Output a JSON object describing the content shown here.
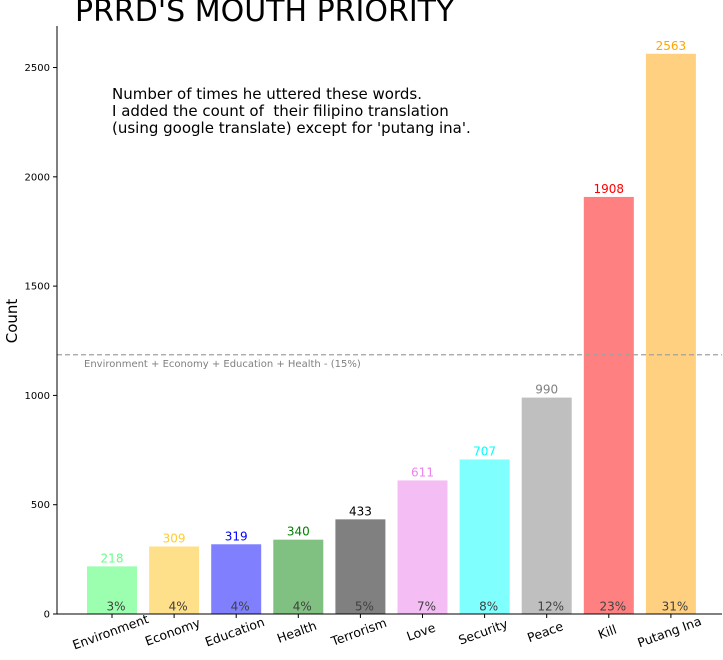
{
  "chart_data": {
    "type": "bar",
    "title": "PRRD'S MOUTH PRIORITY",
    "ylabel": "Count",
    "xlabel": "",
    "annotation_lines": [
      "Number of times he uttered these words.",
      "I added the count of  their filipino translation",
      "(using google translate) except for 'putang ina'."
    ],
    "categories": [
      "Environment",
      "Economy",
      "Education",
      "Health",
      "Terrorism",
      "Love",
      "Security",
      "Peace",
      "Kill",
      "Putang Ina"
    ],
    "values": [
      218,
      309,
      319,
      340,
      433,
      611,
      707,
      990,
      1908,
      2563
    ],
    "percent_labels": [
      "3%",
      "4%",
      "4%",
      "4%",
      "5%",
      "7%",
      "8%",
      "12%",
      "23%",
      "31%"
    ],
    "bar_colors": [
      "#9cffb0",
      "#ffe08a",
      "#8080ff",
      "#80c080",
      "#808080",
      "#f4bef4",
      "#80ffff",
      "#bfbfbf",
      "#ff8080",
      "#ffd080"
    ],
    "value_label_colors": [
      "#66ff88",
      "#ffcc33",
      "#0000ff",
      "#008000",
      "#000000",
      "#ee82ee",
      "#00ffff",
      "#808080",
      "#ff0000",
      "#ffa500"
    ],
    "reference_line": {
      "value": 1186,
      "label": "Environment + Economy + Education + Health - (15%)",
      "color": "#a0a0a0",
      "style": "dashed"
    },
    "ylim": [
      0,
      2690
    ],
    "yticks": [
      0,
      500,
      1000,
      1500,
      2000,
      2500
    ],
    "grid": false,
    "legend": "none"
  }
}
